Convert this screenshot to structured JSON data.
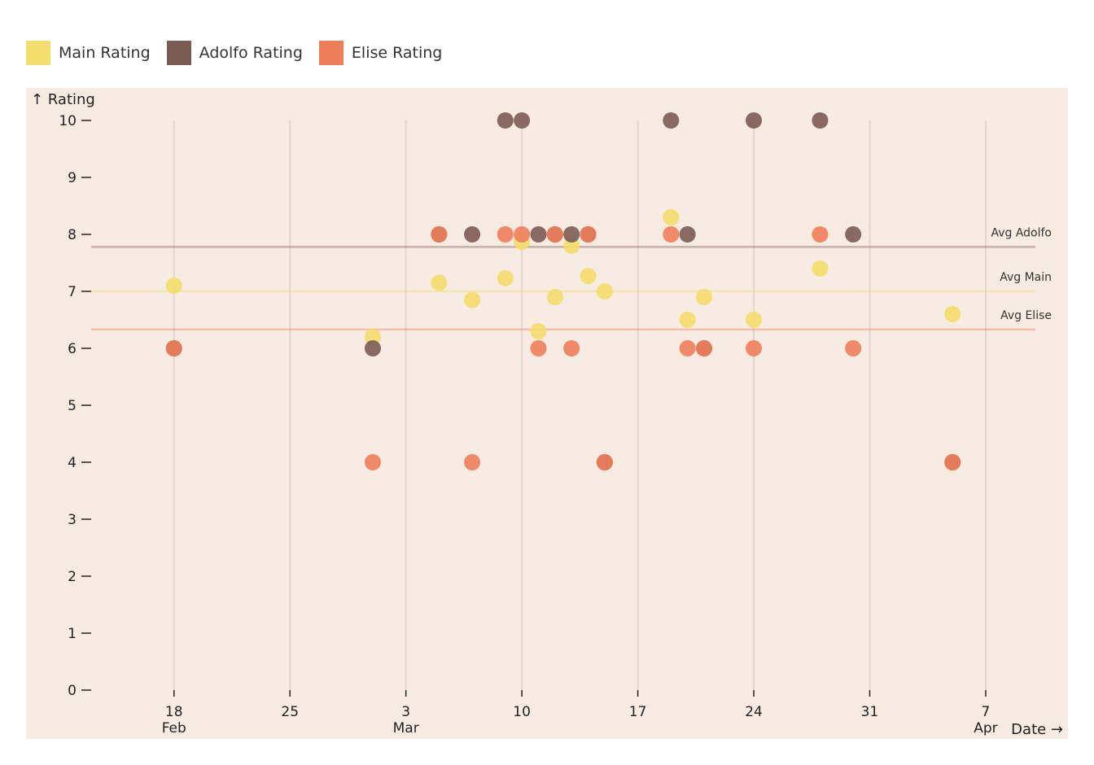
{
  "legend": {
    "items": [
      {
        "label": "Main Rating",
        "color": "#f3dd6d"
      },
      {
        "label": "Adolfo Rating",
        "color": "#7b5c55"
      },
      {
        "label": "Elise Rating",
        "color": "#ee7e5a"
      }
    ]
  },
  "chart_data": {
    "type": "scatter",
    "xlabel": "Date →",
    "ylabel": "↑ Rating",
    "background": "#f7ebe2",
    "grid_color": "#e3d6cf",
    "x_range": [
      "2024-02-13",
      "2024-04-10"
    ],
    "ylim": [
      0,
      10
    ],
    "y_ticks": [
      0,
      1,
      2,
      3,
      4,
      5,
      6,
      7,
      8,
      9,
      10
    ],
    "x_ticks": [
      {
        "date": "2024-02-18",
        "label": "18",
        "month": "Feb"
      },
      {
        "date": "2024-02-25",
        "label": "25",
        "month": ""
      },
      {
        "date": "2024-03-03",
        "label": "3",
        "month": "Mar"
      },
      {
        "date": "2024-03-10",
        "label": "10",
        "month": ""
      },
      {
        "date": "2024-03-17",
        "label": "17",
        "month": ""
      },
      {
        "date": "2024-03-24",
        "label": "24",
        "month": ""
      },
      {
        "date": "2024-03-31",
        "label": "31",
        "month": ""
      },
      {
        "date": "2024-04-07",
        "label": "7",
        "month": "Apr"
      }
    ],
    "series": [
      {
        "name": "Main Rating",
        "color": "#f3dd6d",
        "points": [
          {
            "x": "2024-02-18",
            "y": 7.1
          },
          {
            "x": "2024-03-01",
            "y": 6.2
          },
          {
            "x": "2024-03-05",
            "y": 7.15
          },
          {
            "x": "2024-03-07",
            "y": 6.85
          },
          {
            "x": "2024-03-09",
            "y": 7.23
          },
          {
            "x": "2024-03-10",
            "y": 7.87
          },
          {
            "x": "2024-03-11",
            "y": 6.3
          },
          {
            "x": "2024-03-12",
            "y": 6.9
          },
          {
            "x": "2024-03-13",
            "y": 7.8
          },
          {
            "x": "2024-03-14",
            "y": 7.27
          },
          {
            "x": "2024-03-15",
            "y": 7.0
          },
          {
            "x": "2024-03-19",
            "y": 8.3
          },
          {
            "x": "2024-03-20",
            "y": 6.5
          },
          {
            "x": "2024-03-21",
            "y": 6.9
          },
          {
            "x": "2024-03-24",
            "y": 6.5
          },
          {
            "x": "2024-03-28",
            "y": 7.4
          },
          {
            "x": "2024-04-05",
            "y": 6.6
          }
        ]
      },
      {
        "name": "Adolfo Rating",
        "color": "#7b5c55",
        "points": [
          {
            "x": "2024-02-18",
            "y": 6
          },
          {
            "x": "2024-03-01",
            "y": 6
          },
          {
            "x": "2024-03-05",
            "y": 8
          },
          {
            "x": "2024-03-07",
            "y": 8
          },
          {
            "x": "2024-03-09",
            "y": 10
          },
          {
            "x": "2024-03-10",
            "y": 10
          },
          {
            "x": "2024-03-11",
            "y": 8
          },
          {
            "x": "2024-03-12",
            "y": 8
          },
          {
            "x": "2024-03-13",
            "y": 8
          },
          {
            "x": "2024-03-14",
            "y": 8
          },
          {
            "x": "2024-03-15",
            "y": 4
          },
          {
            "x": "2024-03-19",
            "y": 10
          },
          {
            "x": "2024-03-20",
            "y": 8
          },
          {
            "x": "2024-03-21",
            "y": 6
          },
          {
            "x": "2024-03-24",
            "y": 10
          },
          {
            "x": "2024-03-28",
            "y": 10
          },
          {
            "x": "2024-03-30",
            "y": 8
          },
          {
            "x": "2024-04-05",
            "y": 4
          }
        ]
      },
      {
        "name": "Elise Rating",
        "color": "#ee7e5a",
        "points": [
          {
            "x": "2024-02-18",
            "y": 6
          },
          {
            "x": "2024-03-01",
            "y": 4
          },
          {
            "x": "2024-03-05",
            "y": 8
          },
          {
            "x": "2024-03-07",
            "y": 4
          },
          {
            "x": "2024-03-09",
            "y": 8
          },
          {
            "x": "2024-03-10",
            "y": 8
          },
          {
            "x": "2024-03-11",
            "y": 6
          },
          {
            "x": "2024-03-12",
            "y": 8
          },
          {
            "x": "2024-03-13",
            "y": 6
          },
          {
            "x": "2024-03-14",
            "y": 8
          },
          {
            "x": "2024-03-15",
            "y": 4
          },
          {
            "x": "2024-03-19",
            "y": 8
          },
          {
            "x": "2024-03-20",
            "y": 6
          },
          {
            "x": "2024-03-21",
            "y": 6
          },
          {
            "x": "2024-03-24",
            "y": 6
          },
          {
            "x": "2024-03-28",
            "y": 8
          },
          {
            "x": "2024-03-30",
            "y": 6
          },
          {
            "x": "2024-04-05",
            "y": 4
          }
        ]
      }
    ],
    "averages": [
      {
        "label": "Avg Adolfo",
        "value": 7.78,
        "color": "#7b5c55"
      },
      {
        "label": "Avg Main",
        "value": 7.0,
        "color": "#f3dd6d"
      },
      {
        "label": "Avg Elise",
        "value": 6.33,
        "color": "#ee7e5a"
      }
    ]
  }
}
